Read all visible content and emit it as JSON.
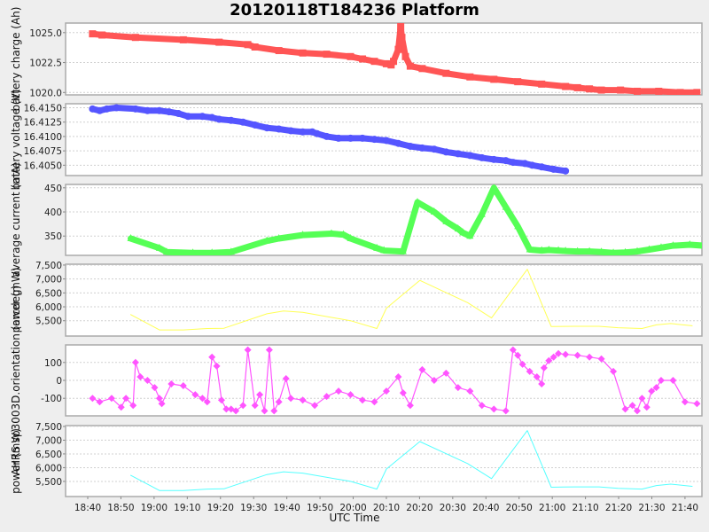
{
  "chart_data": {
    "type": "line",
    "title": "20120118T184236 Platform",
    "xlabel": "UTC Time",
    "x_ticks": [
      "18:40",
      "18:50",
      "19:00",
      "19:10",
      "19:20",
      "19:30",
      "19:40",
      "19:50",
      "20:00",
      "20:10",
      "20:20",
      "20:30",
      "20:40",
      "20:50",
      "21:00",
      "21:10",
      "21:20",
      "21:30",
      "21:40"
    ],
    "x_unit": "minutes after 18:40",
    "panels": [
      {
        "ylabel": "battery charge (Ah)",
        "color": "#ff5555",
        "marker": "square",
        "ylim": [
          1019.8,
          1025.8
        ],
        "yticks": [
          1020.0,
          1022.5,
          1025.0
        ],
        "ytick_labels": [
          "1020.0",
          "1022.5",
          "1025.0"
        ],
        "series": {
          "name": "battery charge",
          "x": [
            2,
            6,
            20,
            40,
            55,
            67,
            70,
            80,
            90,
            100,
            110,
            115,
            120,
            125,
            127,
            128,
            130,
            131,
            131.5,
            133,
            135,
            140,
            150,
            160,
            170,
            180,
            190,
            200,
            205,
            210,
            215,
            223,
            230,
            239,
            248,
            255
          ],
          "values": [
            1024.9,
            1024.8,
            1024.6,
            1024.4,
            1024.2,
            1024.0,
            1023.8,
            1023.5,
            1023.3,
            1023.2,
            1023.0,
            1022.8,
            1022.6,
            1022.4,
            1022.3,
            1022.6,
            1023.6,
            1025.5,
            1024.6,
            1023.0,
            1022.2,
            1022.0,
            1021.6,
            1021.3,
            1021.1,
            1020.9,
            1020.7,
            1020.5,
            1020.4,
            1020.3,
            1020.2,
            1020.2,
            1020.1,
            1020.1,
            1020.0,
            1020.0
          ]
        }
      },
      {
        "ylabel": "battery voltage (V)",
        "color": "#5555ff",
        "marker": "circle",
        "ylim": [
          16.4032,
          16.4157
        ],
        "yticks": [
          16.405,
          16.4075,
          16.41,
          16.4125,
          16.415
        ],
        "ytick_labels": [
          "16.4050",
          "16.4075",
          "16.4100",
          "16.4125",
          "16.4150"
        ],
        "series": {
          "name": "battery voltage",
          "x": [
            2,
            5,
            8,
            12,
            20,
            25,
            30,
            34,
            38,
            42,
            48,
            52,
            55,
            60,
            65,
            70,
            75,
            80,
            85,
            90,
            94,
            96,
            100,
            105,
            110,
            115,
            120,
            125,
            130,
            135,
            140,
            145,
            150,
            155,
            160,
            165,
            170,
            175,
            178,
            183,
            186,
            190,
            195,
            200
          ],
          "values": [
            16.4148,
            16.4145,
            16.4148,
            16.415,
            16.4148,
            16.4145,
            16.4145,
            16.4143,
            16.414,
            16.4135,
            16.4135,
            16.4133,
            16.413,
            16.4128,
            16.4125,
            16.412,
            16.4115,
            16.4113,
            16.411,
            16.4108,
            16.4108,
            16.4105,
            16.41,
            16.4097,
            16.4097,
            16.4097,
            16.4095,
            16.4093,
            16.4088,
            16.4083,
            16.408,
            16.4078,
            16.4073,
            16.407,
            16.4067,
            16.4063,
            16.406,
            16.4058,
            16.4055,
            16.4053,
            16.405,
            16.4047,
            16.4043,
            16.404
          ]
        }
      },
      {
        "ylabel": "average current (mA)",
        "color": "#55ff55",
        "marker": "triangle",
        "ylim": [
          310,
          457
        ],
        "yticks": [
          350,
          400,
          450
        ],
        "ytick_labels": [
          "350",
          "400",
          "450"
        ],
        "series": {
          "name": "average current",
          "x": [
            18,
            30,
            33,
            44,
            52,
            60,
            75,
            80,
            90,
            102,
            107,
            110,
            121,
            124,
            132,
            138,
            145,
            150,
            155,
            157,
            160,
            165,
            170,
            175,
            180,
            185,
            190,
            193,
            197,
            200,
            205,
            210,
            215,
            220,
            225,
            230,
            235,
            240,
            245,
            252,
            258
          ],
          "values": [
            345,
            325,
            317,
            315,
            315,
            317,
            340,
            345,
            352,
            355,
            353,
            345,
            325,
            320,
            318,
            420,
            400,
            380,
            365,
            357,
            350,
            395,
            450,
            410,
            370,
            322,
            320,
            321,
            320,
            319,
            318,
            318,
            317,
            315,
            316,
            318,
            322,
            326,
            330,
            332,
            330
          ]
        }
      },
      {
        "ylabel": "power (mW)",
        "color": "#ffff55",
        "marker": "none",
        "ylim": [
          4950,
          7530
        ],
        "yticks": [
          5500,
          6000,
          6500,
          7000,
          7500
        ],
        "ytick_labels": [
          "5,500",
          "6,000",
          "6,500",
          "7,000",
          "7,500"
        ],
        "series": {
          "name": "power",
          "x": [
            18,
            30,
            40,
            50,
            57,
            75,
            82,
            90,
            110,
            121,
            125,
            139,
            149,
            159,
            169,
            184,
            194,
            204,
            214,
            222,
            232,
            238,
            244,
            253
          ],
          "values": [
            5720,
            5170,
            5170,
            5220,
            5230,
            5750,
            5850,
            5800,
            5500,
            5220,
            5950,
            6950,
            6550,
            6150,
            5600,
            7350,
            5290,
            5300,
            5300,
            5250,
            5220,
            5350,
            5400,
            5320
          ]
        }
      },
      {
        "ylabel": "AHRS sp3003D.orientation (arcdeg)",
        "color": "#ff55ff",
        "marker": "diamond",
        "ylim": [
          -198,
          198
        ],
        "yticks": [
          -100,
          0,
          100
        ],
        "ytick_labels": [
          "-100",
          "0",
          "100"
        ],
        "series": {
          "name": "orientation",
          "x": [
            2,
            5,
            10,
            14,
            16,
            19,
            20,
            22,
            25,
            28,
            30,
            31,
            35,
            40,
            45,
            48,
            50,
            52,
            54,
            56,
            58,
            60,
            62,
            65,
            67,
            70,
            72,
            74,
            76,
            78,
            80,
            83,
            85,
            90,
            95,
            100,
            105,
            110,
            115,
            120,
            125,
            130,
            132,
            135,
            140,
            145,
            150,
            155,
            160,
            165,
            170,
            175,
            178,
            180,
            182,
            185,
            188,
            190,
            191,
            193,
            195,
            197,
            200,
            205,
            210,
            215,
            220,
            225,
            228,
            230,
            232,
            234,
            236,
            238,
            240,
            245,
            250,
            255
          ],
          "values": [
            -100,
            -120,
            -100,
            -150,
            -100,
            -140,
            100,
            20,
            0,
            -40,
            -100,
            -130,
            -20,
            -30,
            -80,
            -100,
            -120,
            130,
            80,
            -110,
            -160,
            -160,
            -170,
            -140,
            170,
            -140,
            -80,
            -170,
            170,
            -170,
            -120,
            10,
            -100,
            -110,
            -140,
            -90,
            -60,
            -80,
            -110,
            -120,
            -60,
            20,
            -70,
            -140,
            60,
            0,
            40,
            -40,
            -60,
            -140,
            -160,
            -170,
            170,
            140,
            90,
            50,
            20,
            -20,
            70,
            110,
            130,
            150,
            145,
            140,
            130,
            120,
            50,
            -160,
            -140,
            -170,
            -100,
            -150,
            -60,
            -40,
            0,
            0,
            -120,
            -130
          ]
        }
      },
      {
        "ylabel": "power (mW)",
        "color": "#55ffff",
        "marker": "none",
        "ylim": [
          4950,
          7530
        ],
        "yticks": [
          5500,
          6000,
          6500,
          7000,
          7500
        ],
        "ytick_labels": [
          "5,500",
          "6,000",
          "6,500",
          "7,000",
          "7,500"
        ],
        "series": {
          "name": "power",
          "x": [
            18,
            30,
            40,
            50,
            57,
            75,
            82,
            90,
            110,
            121,
            125,
            139,
            149,
            159,
            169,
            184,
            194,
            204,
            214,
            222,
            232,
            238,
            244,
            253
          ],
          "values": [
            5720,
            5170,
            5170,
            5220,
            5230,
            5750,
            5850,
            5800,
            5500,
            5220,
            5950,
            6950,
            6550,
            6150,
            5600,
            7350,
            5290,
            5300,
            5300,
            5250,
            5220,
            5350,
            5400,
            5320
          ]
        }
      }
    ]
  }
}
